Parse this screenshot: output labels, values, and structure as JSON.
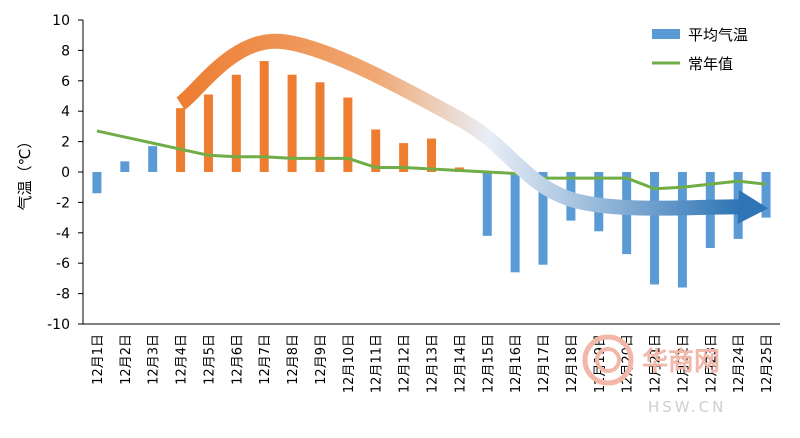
{
  "chart_data": {
    "type": "bar",
    "categories": [
      "12月1日",
      "12月2日",
      "12月3日",
      "12月4日",
      "12月5日",
      "12月6日",
      "12月7日",
      "12月8日",
      "12月9日",
      "12月10日",
      "12月11日",
      "12月12日",
      "12月13日",
      "12月14日",
      "12月15日",
      "12月16日",
      "12月17日",
      "12月18日",
      "12月19日",
      "12月20日",
      "12月21日",
      "12月22日",
      "12月23日",
      "12月24日",
      "12月25日"
    ],
    "series": [
      {
        "name": "平均气温",
        "kind": "bar",
        "color": "#5b9bd5",
        "highlight_color": "#ed7d31",
        "highlight_range": [
          3,
          13
        ],
        "values": [
          -1.4,
          0.7,
          1.7,
          4.2,
          5.1,
          6.4,
          7.3,
          6.4,
          5.9,
          4.9,
          2.8,
          1.9,
          2.2,
          0.3,
          -4.2,
          -6.6,
          -6.1,
          -3.2,
          -3.9,
          -5.4,
          -7.4,
          -7.6,
          -5.0,
          -4.4,
          -3.0
        ]
      },
      {
        "name": "常年值",
        "kind": "line",
        "color": "#70ad47",
        "values": [
          2.7,
          2.3,
          1.9,
          1.5,
          1.1,
          1.0,
          1.0,
          0.9,
          0.9,
          0.9,
          0.3,
          0.3,
          0.2,
          0.1,
          0.0,
          -0.1,
          -0.4,
          -0.4,
          -0.4,
          -0.4,
          -1.1,
          -1.0,
          -0.8,
          -0.6,
          -0.8
        ]
      }
    ],
    "ylabel": "气温（℃）",
    "xlabel": "",
    "ylim": [
      -10,
      10
    ],
    "yticks": [
      -10,
      -8,
      -6,
      -4,
      -2,
      0,
      2,
      4,
      6,
      8,
      10
    ],
    "grid": false,
    "legend_position": "top-right",
    "trend_arrow": {
      "start_color": "#ed7d31",
      "end_color": "#2e75b6",
      "points": [
        [
          3,
          4.5
        ],
        [
          6.5,
          8.6
        ],
        [
          13,
          3.5
        ],
        [
          17,
          -1.8
        ],
        [
          23,
          -2.3
        ]
      ]
    }
  },
  "watermark": {
    "text": "华商网",
    "sub": "HSW.CN"
  }
}
